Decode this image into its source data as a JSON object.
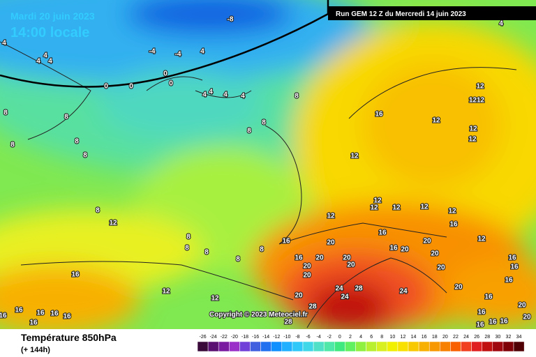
{
  "header": {
    "date": "Mardi 20 juin 2023",
    "time": "14:00 locale",
    "run": "Run GEM 12 Z du Mercredi 14 juin 2023"
  },
  "map": {
    "copyright": "Copyright © 2023 Meteociel.fr",
    "contour_labels": [
      "4",
      "4",
      "4",
      "4",
      "-4",
      "-4",
      "4",
      "-8",
      "0",
      "0",
      "0",
      "0",
      "4",
      "4",
      "4",
      "4",
      "8",
      "8",
      "8",
      "8",
      "8",
      "8",
      "8",
      "8",
      "8",
      "8",
      "8",
      "8",
      "8",
      "8",
      "12",
      "1212",
      "16",
      "12",
      "12",
      "12",
      "12",
      "12",
      "12",
      "12",
      "12",
      "12",
      "12",
      "12",
      "16",
      "16",
      "16",
      "20",
      "20",
      "16",
      "20",
      "12",
      "16",
      "20",
      "20",
      "20",
      "20",
      "20",
      "20",
      "20",
      "16",
      "16",
      "16",
      "24",
      "28",
      "24",
      "20",
      "12",
      "12",
      "28",
      "24",
      "16",
      "16",
      "16",
      "16",
      "16",
      "16",
      "28",
      "20",
      "16",
      "20",
      "16",
      "16",
      "20",
      "16",
      "16",
      "16",
      "4"
    ]
  },
  "footer": {
    "title": "Température 850hPa",
    "subtitle": "(+ 144h)"
  },
  "legend": {
    "ticks": [
      -26,
      -24,
      -22,
      -20,
      -18,
      -16,
      -14,
      -12,
      -10,
      -8,
      -6,
      -4,
      -2,
      0,
      2,
      4,
      6,
      8,
      10,
      12,
      14,
      16,
      18,
      20,
      22,
      24,
      26,
      28,
      30,
      32,
      34
    ],
    "colors": [
      "#3a0a3a",
      "#5a1070",
      "#7a1aa0",
      "#9a30c8",
      "#7040d8",
      "#4060e0",
      "#2070f0",
      "#1090ff",
      "#20b0ff",
      "#30c8f8",
      "#40d8e8",
      "#50e0c8",
      "#50e8a8",
      "#40e880",
      "#60f060",
      "#90f040",
      "#b8f030",
      "#d8f020",
      "#f0f000",
      "#f8e000",
      "#f8c800",
      "#f8b000",
      "#f89800",
      "#f88000",
      "#f86000",
      "#f04020",
      "#e02020",
      "#c01010",
      "#a00810",
      "#800008",
      "#500004"
    ]
  }
}
